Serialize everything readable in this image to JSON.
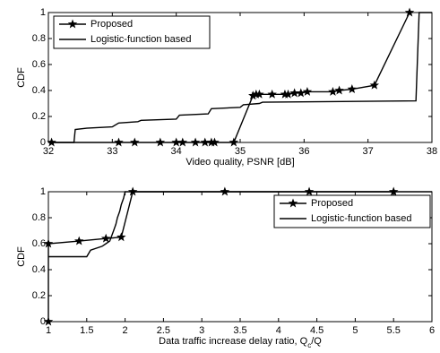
{
  "chart_data": [
    {
      "type": "line",
      "ylabel": "CDF",
      "xlabel": [
        "Video quality, PSNR [dB]"
      ],
      "xlim": [
        32,
        38
      ],
      "xticks": [
        32,
        33,
        34,
        35,
        36,
        37,
        38
      ],
      "ylim": [
        0,
        1
      ],
      "yticks": [
        0,
        0.2,
        0.4,
        0.6,
        0.8,
        1
      ],
      "grid": false,
      "legend": "upper left",
      "series": [
        {
          "name": "Proposed",
          "color": "#000000",
          "marker": "star",
          "x": [
            32.05,
            33.1,
            33.35,
            33.75,
            34.0,
            34.1,
            34.3,
            34.45,
            34.55,
            34.6,
            34.9,
            35.2,
            35.25,
            35.3,
            35.5,
            35.7,
            35.75,
            35.85,
            35.95,
            36.05,
            36.45,
            36.55,
            36.75,
            37.1,
            37.65
          ],
          "values": [
            0,
            0,
            0,
            0,
            0,
            0,
            0,
            0,
            0,
            0,
            0,
            0.36,
            0.37,
            0.37,
            0.37,
            0.37,
            0.37,
            0.38,
            0.38,
            0.39,
            0.39,
            0.4,
            0.41,
            0.44,
            1
          ]
        },
        {
          "name": "Logistic-function based",
          "color": "#000000",
          "marker": "none",
          "x": [
            32,
            32.4,
            32.42,
            32.6,
            33.0,
            33.1,
            33.4,
            33.45,
            34.0,
            34.05,
            34.5,
            34.55,
            35.0,
            35.05,
            35.3,
            35.35,
            37.75,
            37.8,
            38
          ],
          "values": [
            0,
            0,
            0.1,
            0.11,
            0.12,
            0.15,
            0.16,
            0.17,
            0.18,
            0.21,
            0.22,
            0.26,
            0.27,
            0.29,
            0.3,
            0.31,
            0.32,
            1,
            1
          ]
        }
      ]
    },
    {
      "type": "line",
      "ylabel": "CDF",
      "xlabel": [
        "Data traffic increase delay ratio, Q",
        "c",
        "/Q"
      ],
      "xlim": [
        1,
        6
      ],
      "xticks": [
        1,
        1.5,
        2,
        2.5,
        3,
        3.5,
        4,
        4.5,
        5,
        5.5,
        6
      ],
      "ylim": [
        0,
        1
      ],
      "yticks": [
        0,
        0.2,
        0.4,
        0.6,
        0.8,
        1
      ],
      "grid": false,
      "legend": "upper right",
      "series": [
        {
          "name": "Proposed",
          "color": "#000000",
          "marker": "star",
          "x": [
            1,
            1,
            1.4,
            1.75,
            1.95,
            2.1,
            3.3,
            4.4,
            5.5
          ],
          "values": [
            0,
            0.6,
            0.62,
            0.64,
            0.65,
            1,
            1,
            1,
            1
          ]
        },
        {
          "name": "Logistic-function based",
          "color": "#000000",
          "marker": "none",
          "x": [
            1,
            1.5,
            1.55,
            1.7,
            1.75,
            1.8,
            1.85,
            1.88,
            1.9,
            1.93,
            1.95,
            1.98,
            2.0,
            6
          ],
          "values": [
            0.5,
            0.5,
            0.55,
            0.58,
            0.6,
            0.62,
            0.7,
            0.75,
            0.8,
            0.85,
            0.9,
            0.95,
            1,
            1
          ]
        }
      ]
    }
  ]
}
